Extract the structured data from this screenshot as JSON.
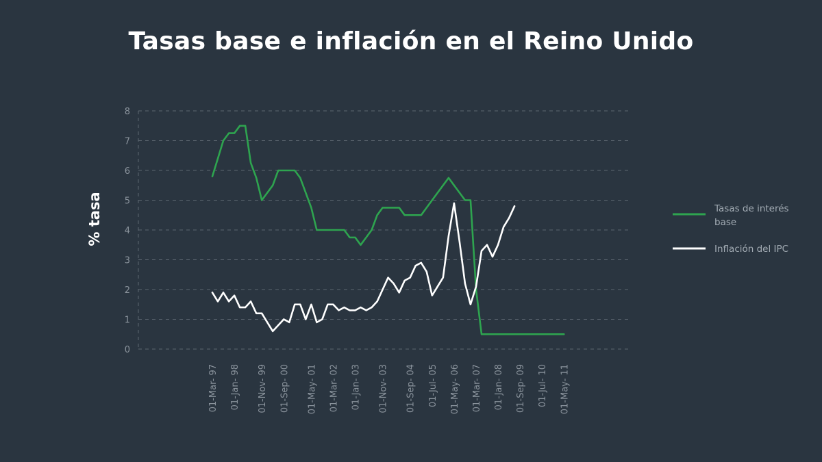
{
  "title": "Tasas base e inflación en el Reino Unido",
  "chart_data": {
    "type": "line",
    "title": "Tasas base e inflación en el Reino Unido",
    "xlabel": "",
    "ylabel": "% tasa",
    "ylim": [
      0,
      8
    ],
    "yticks": [
      0,
      1,
      2,
      3,
      4,
      5,
      6,
      7,
      8
    ],
    "grid": true,
    "legend_position": "right",
    "x_tick_labels": [
      "01-Mar- 97",
      "01-Jan- 98",
      "01-Nov- 99",
      "01-Sep- 00",
      "01-May- 01",
      "01-Mar- 02",
      "01-Jan- 03",
      "01-Nov- 03",
      "01-Sep- 04",
      "01-Jul- 05",
      "01-May- 06",
      "01-Mar- 07",
      "01-Jan- 08",
      "01-Sep- 09",
      "01-Jul- 10",
      "01-May- 11"
    ],
    "x_tick_index": [
      0,
      4,
      9,
      13,
      18,
      22,
      26,
      31,
      36,
      40,
      44,
      48,
      52,
      56,
      60,
      64
    ],
    "series": [
      {
        "name": "Tasas de interés base",
        "color": "#2ea44f",
        "values": [
          5.8,
          6.4,
          7.0,
          7.25,
          7.25,
          7.5,
          7.5,
          6.25,
          5.75,
          5.0,
          5.25,
          5.5,
          6.0,
          6.0,
          6.0,
          6.0,
          5.75,
          5.25,
          4.75,
          4.0,
          4.0,
          4.0,
          4.0,
          4.0,
          4.0,
          3.75,
          3.75,
          3.5,
          3.75,
          4.0,
          4.5,
          4.75,
          4.75,
          4.75,
          4.75,
          4.5,
          4.5,
          4.5,
          4.5,
          4.75,
          5.0,
          5.25,
          5.5,
          5.75,
          5.5,
          5.25,
          5.0,
          5.0,
          2.0,
          0.5,
          0.5,
          0.5,
          0.5,
          0.5,
          0.5,
          0.5,
          0.5,
          0.5,
          0.5,
          0.5,
          0.5,
          0.5,
          0.5,
          0.5,
          0.5
        ]
      },
      {
        "name": "Inflación del IPC",
        "color": "#ffffff",
        "values": [
          1.9,
          1.6,
          1.9,
          1.6,
          1.8,
          1.4,
          1.4,
          1.6,
          1.2,
          1.2,
          0.9,
          0.6,
          0.8,
          1.0,
          0.9,
          1.5,
          1.5,
          1.0,
          1.5,
          0.9,
          1.0,
          1.5,
          1.5,
          1.3,
          1.4,
          1.3,
          1.3,
          1.4,
          1.3,
          1.4,
          1.6,
          2.0,
          2.4,
          2.2,
          1.9,
          2.3,
          2.4,
          2.8,
          2.9,
          2.6,
          1.8,
          2.1,
          2.4,
          3.8,
          4.9,
          3.6,
          2.2,
          1.5,
          2.1,
          3.3,
          3.5,
          3.1,
          3.5,
          4.1,
          4.4,
          4.8
        ]
      }
    ]
  },
  "legend": {
    "items": [
      {
        "label_line1": "Tasas de interés",
        "label_line2": "base",
        "color": "#2ea44f"
      },
      {
        "label_line1": "Inflación del IPC",
        "label_line2": "",
        "color": "#ffffff"
      }
    ]
  }
}
